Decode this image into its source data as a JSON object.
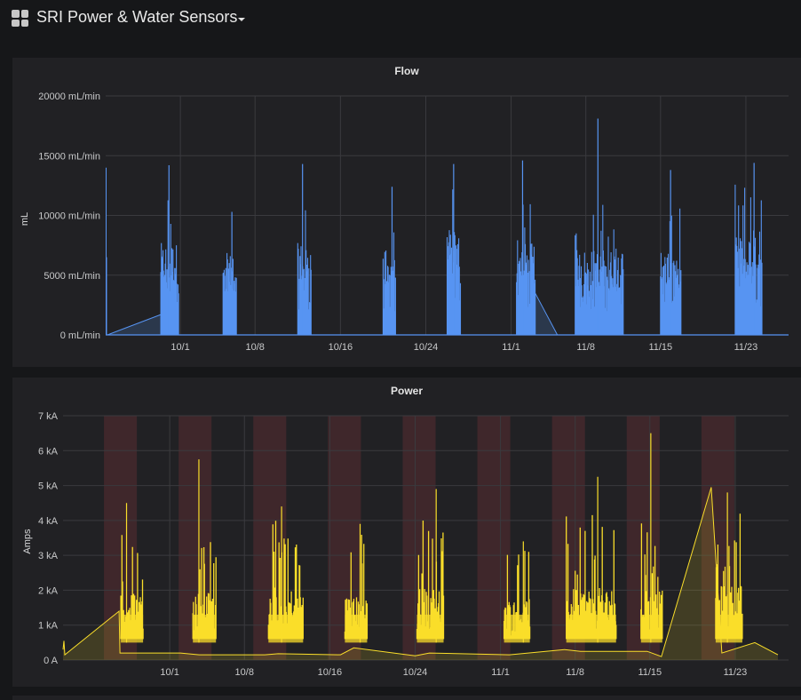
{
  "dashboard": {
    "title": "SRI Power & Water Sensors"
  },
  "colors": {
    "flow": "#5794f2",
    "power": "#fade2a",
    "region": "#4a2a2d",
    "grid": "#3a3a3e"
  },
  "chart_data": [
    {
      "type": "line",
      "title": "Flow",
      "ylabel": "mL",
      "ylim": [
        0,
        20000
      ],
      "yticks": [
        {
          "v": 0,
          "label": "0 mL/min"
        },
        {
          "v": 5000,
          "label": "5000 mL/min"
        },
        {
          "v": 10000,
          "label": "10000 mL/min"
        },
        {
          "v": 15000,
          "label": "15000 mL/min"
        },
        {
          "v": 20000,
          "label": "20000 mL/min"
        }
      ],
      "xlim": [
        "2021-09-24",
        "2021-11-27"
      ],
      "xticks": [
        {
          "date": "2021-10-01",
          "label": "10/1"
        },
        {
          "date": "2021-10-08",
          "label": "10/8"
        },
        {
          "date": "2021-10-16",
          "label": "10/16"
        },
        {
          "date": "2021-10-24",
          "label": "10/24"
        },
        {
          "date": "2021-11-01",
          "label": "11/1"
        },
        {
          "date": "2021-11-08",
          "label": "11/8"
        },
        {
          "date": "2021-11-15",
          "label": "11/15"
        },
        {
          "date": "2021-11-23",
          "label": "11/23"
        }
      ],
      "series": [
        {
          "baseline": 0,
          "fill": true,
          "spikes": [
            [
              "2021-09-24T01",
              14000
            ],
            [
              "2021-09-24T02",
              6500
            ]
          ],
          "bursts": [
            {
              "start": "2021-09-29T04",
              "end": "2021-09-30T20",
              "peak": 14200,
              "typical": 7000,
              "lead_in_from": "2021-09-24T04",
              "lead_in_value": 1700
            },
            {
              "start": "2021-10-05T00",
              "end": "2021-10-06T06",
              "peak": 10300,
              "typical": 6000
            },
            {
              "start": "2021-10-12T00",
              "end": "2021-10-13T06",
              "peak": 14300,
              "typical": 7000
            },
            {
              "start": "2021-10-20T00",
              "end": "2021-10-21T04",
              "peak": 12400,
              "typical": 6000
            },
            {
              "start": "2021-10-26T00",
              "end": "2021-10-27T06",
              "peak": 14300,
              "typical": 8000
            },
            {
              "start": "2021-11-01T12",
              "end": "2021-11-03T06",
              "peak": 14600,
              "typical": 7000,
              "lead_out_to": "2021-11-05T08",
              "lead_out_value": 0
            },
            {
              "start": "2021-11-07T00",
              "end": "2021-11-11T12",
              "peak": 18100,
              "typical": 6500
            },
            {
              "start": "2021-11-15T00",
              "end": "2021-11-16T22",
              "peak": 13800,
              "typical": 6500
            },
            {
              "start": "2021-11-22T00",
              "end": "2021-11-24T12",
              "peak": 14400,
              "typical": 7500
            }
          ]
        }
      ]
    },
    {
      "type": "line",
      "title": "Power",
      "ylabel": "Amps",
      "ylim": [
        0,
        7000
      ],
      "yticks": [
        {
          "v": 0,
          "label": "0 A"
        },
        {
          "v": 1000,
          "label": "1 kA"
        },
        {
          "v": 2000,
          "label": "2 kA"
        },
        {
          "v": 3000,
          "label": "3 kA"
        },
        {
          "v": 4000,
          "label": "4 kA"
        },
        {
          "v": 5000,
          "label": "5 kA"
        },
        {
          "v": 6000,
          "label": "6 kA"
        },
        {
          "v": 7000,
          "label": "7 kA"
        }
      ],
      "xlim": [
        "2021-09-21",
        "2021-11-28"
      ],
      "xticks": [
        {
          "date": "2021-10-01",
          "label": "10/1"
        },
        {
          "date": "2021-10-08",
          "label": "10/8"
        },
        {
          "date": "2021-10-16",
          "label": "10/16"
        },
        {
          "date": "2021-10-24",
          "label": "10/24"
        },
        {
          "date": "2021-11-01",
          "label": "11/1"
        },
        {
          "date": "2021-11-08",
          "label": "11/8"
        },
        {
          "date": "2021-11-15",
          "label": "11/15"
        },
        {
          "date": "2021-11-23",
          "label": "11/23"
        }
      ],
      "regions": [
        [
          "2021-09-24T20",
          "2021-09-27T22"
        ],
        [
          "2021-10-01T20",
          "2021-10-04T22"
        ],
        [
          "2021-10-08T20",
          "2021-10-11T22"
        ],
        [
          "2021-10-15T20",
          "2021-10-18T22"
        ],
        [
          "2021-10-22T20",
          "2021-10-25T22"
        ],
        [
          "2021-10-29T20",
          "2021-11-01T22"
        ],
        [
          "2021-11-05T20",
          "2021-11-08T22"
        ],
        [
          "2021-11-12T20",
          "2021-11-15T22"
        ],
        [
          "2021-11-19T20",
          "2021-11-22T22"
        ]
      ],
      "series": [
        {
          "baseline": 150,
          "fill": true,
          "points": [
            [
              "2021-09-21T00",
              300
            ],
            [
              "2021-09-21T02",
              550
            ],
            [
              "2021-09-21T04",
              150
            ],
            [
              "2021-09-26T06",
              1400
            ],
            [
              "2021-09-26T08",
              200
            ],
            [
              "2021-10-02T00",
              200
            ],
            [
              "2021-10-03T18",
              150
            ],
            [
              "2021-10-09T22",
              150
            ],
            [
              "2021-10-11T04",
              180
            ],
            [
              "2021-10-17T00",
              150
            ],
            [
              "2021-10-18T06",
              350
            ],
            [
              "2021-10-24T00",
              120
            ],
            [
              "2021-10-25T08",
              200
            ],
            [
              "2021-10-31T12",
              160
            ],
            [
              "2021-11-01T20",
              150
            ],
            [
              "2021-11-07T00",
              300
            ],
            [
              "2021-11-08T12",
              250
            ],
            [
              "2021-11-14T18",
              250
            ],
            [
              "2021-11-16T02",
              100
            ],
            [
              "2021-11-20T18",
              4950
            ],
            [
              "2021-11-21T18",
              200
            ],
            [
              "2021-11-24T20",
              500
            ],
            [
              "2021-11-27T00",
              150
            ]
          ],
          "bursts": [
            {
              "start": "2021-09-26T10",
              "end": "2021-09-28T12",
              "peak": 4500,
              "typical": 2500
            },
            {
              "start": "2021-10-03T04",
              "end": "2021-10-05T08",
              "peak": 5750,
              "typical": 2500
            },
            {
              "start": "2021-10-10T06",
              "end": "2021-10-13T12",
              "peak": 4400,
              "typical": 2600
            },
            {
              "start": "2021-10-17T10",
              "end": "2021-10-19T12",
              "peak": 3900,
              "typical": 2300
            },
            {
              "start": "2021-10-24T04",
              "end": "2021-10-26T16",
              "peak": 4900,
              "typical": 2600
            },
            {
              "start": "2021-11-01T08",
              "end": "2021-11-03T18",
              "peak": 3400,
              "typical": 2200
            },
            {
              "start": "2021-11-07T04",
              "end": "2021-11-11T20",
              "peak": 5250,
              "typical": 2600
            },
            {
              "start": "2021-11-14T04",
              "end": "2021-11-16T04",
              "peak": 6500,
              "typical": 2500
            },
            {
              "start": "2021-11-21T04",
              "end": "2021-11-23T16",
              "peak": 4800,
              "typical": 2700
            }
          ]
        }
      ]
    }
  ]
}
